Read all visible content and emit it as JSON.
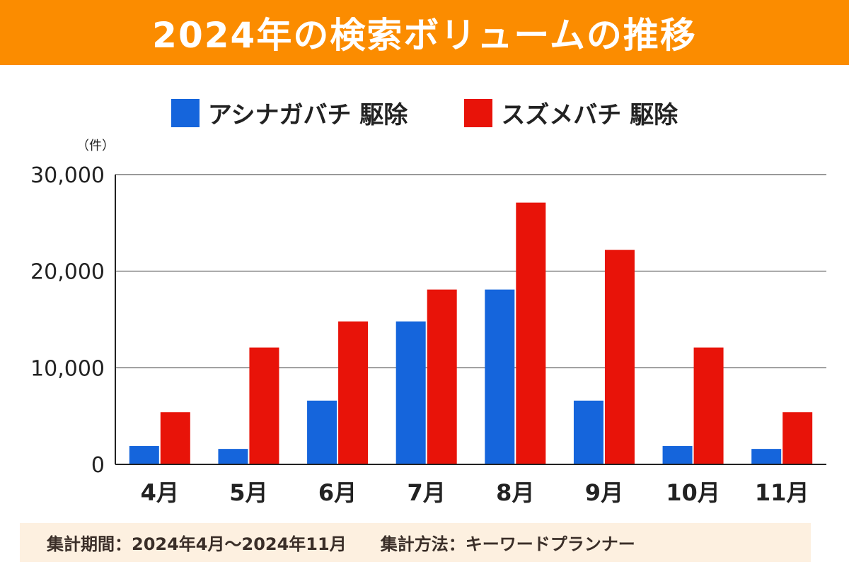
{
  "title": "2024年の検索ボリュームの推移",
  "unit_label": "（件）",
  "footer": {
    "period": "集計期間：2024年4月～2024年11月",
    "method": "集計方法：キーワードプランナー"
  },
  "chart_data": {
    "type": "bar",
    "title": "2024年の検索ボリュームの推移",
    "ylabel": "（件）",
    "categories": [
      "4月",
      "5月",
      "6月",
      "7月",
      "8月",
      "9月",
      "10月",
      "11月"
    ],
    "series": [
      {
        "name": "アシナガバチ 駆除",
        "color": "#1565dc",
        "values": [
          1900,
          1600,
          6600,
          14800,
          18100,
          6600,
          1900,
          1600
        ]
      },
      {
        "name": "スズメバチ 駆除",
        "color": "#e81309",
        "values": [
          5400,
          12100,
          14800,
          18100,
          27100,
          22200,
          12100,
          5400
        ]
      }
    ],
    "ylim": [
      0,
      30000
    ],
    "yticks": [
      0,
      10000,
      20000,
      30000
    ],
    "ytick_labels": [
      "0",
      "10,000",
      "20,000",
      "30,000"
    ],
    "grid": true,
    "legend": "top"
  },
  "colors": {
    "header": "#fb8c00",
    "footer_bg": "#fdf0e0"
  }
}
